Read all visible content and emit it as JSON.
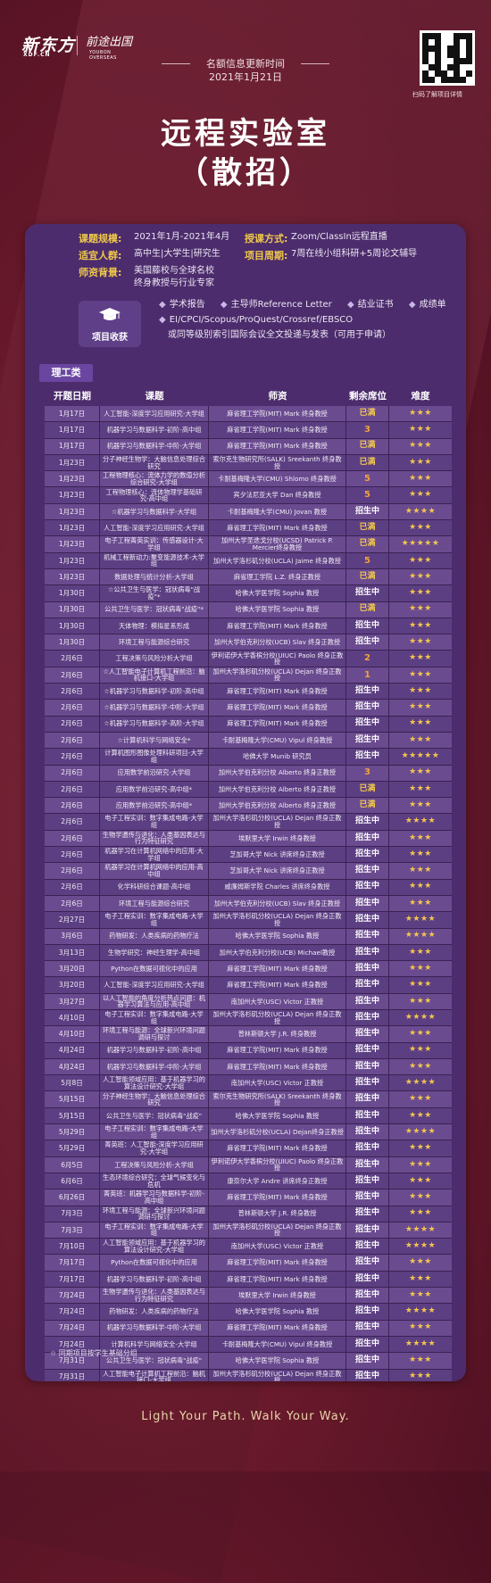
{
  "header": {
    "logo_main": "新东方",
    "logo_main_sub": "XDF.CN",
    "logo_second": "前途出国",
    "logo_second_sub": "YOUBON OVERSEAS",
    "update_label": "名额信息更新时间",
    "update_date": "2021年1月21日",
    "qr_caption": "扫码了解项目详情",
    "title_line1": "远程实验室",
    "title_line2": "（散招）"
  },
  "info": {
    "scale_label": "课题规模:",
    "scale_value": "2021年1月-2021年4月",
    "mode_label": "授课方式:",
    "mode_value": "Zoom/ClassIn远程直播",
    "audience_label": "适宜人群:",
    "audience_value": "高中生|大学生|研究生",
    "cycle_label": "项目周期:",
    "cycle_value": "7周在线小组科研+5周论文辅导",
    "faculty_label": "师资背景:",
    "faculty_line1": "美国藤校与全球名校",
    "faculty_line2": "终身教授与行业专家",
    "harvest_label": "项目收获",
    "harvest_items": [
      "学术报告",
      "主导师Reference Letter",
      "结业证书",
      "成绩单"
    ],
    "harvest_line2": "EI/CPCI/Scopus/ProQuest/Crossref/EBSCO",
    "harvest_line3": "或同等级别索引国际会议全文投递与发表（可用于申请）"
  },
  "section_title": "理工类",
  "table": {
    "headers": [
      "开题日期",
      "课题",
      "师资",
      "剩余席位",
      "难度"
    ],
    "rows": [
      [
        "1月17日",
        "人工智能-深度学习应用研究-大学组",
        "麻省理工学院(MIT) Mark 终身教授",
        "已满",
        "★★★"
      ],
      [
        "1月17日",
        "机器学习与数据科学-初阶-高中组",
        "麻省理工学院(MIT) Mark 终身教授",
        "3",
        "★★★"
      ],
      [
        "1月17日",
        "机器学习与数据科学-中阶-大学组",
        "麻省理工学院(MIT) Mark 终身教授",
        "已满",
        "★★★"
      ],
      [
        "1月23日",
        "分子神经生物学：大脑信息处理综合研究",
        "索尔克生物研究所(SALK) Sreekanth 终身教授",
        "已满",
        "★★★"
      ],
      [
        "1月23日",
        "工程物理核心：流体力学的数值分析综合研究-大学组",
        "卡耐基梅隆大学(CMU) Shlomo 终身教授",
        "5",
        "★★★"
      ],
      [
        "1月23日",
        "工程物理核心：流体物理学基础研究-高中组",
        "宾夕法尼亚大学 Dan 终身教授",
        "5",
        "★★★"
      ],
      [
        "1月23日",
        "☆机器学习与数据科学-大学组",
        "卡耐基梅隆大学(CMU) Jovan 教授",
        "招生中",
        "★★★★"
      ],
      [
        "1月23日",
        "人工智能-深度学习应用研究-大学组",
        "麻省理工学院(MIT) Mark 终身教授",
        "已满",
        "★★★"
      ],
      [
        "1月23日",
        "电子工程菁英实训：传感器设计-大学组",
        "加州大学圣迭戈分校(UCSD) Patrick P. Mercier终身教授",
        "已满",
        "★★★★★"
      ],
      [
        "1月23日",
        "机械工程新动力:聚变能源技术-大学组",
        "加州大学洛杉矶分校(UCLA) Jaime 终身教授",
        "5",
        "★★★"
      ],
      [
        "1月23日",
        "数据处理与统计分析-大学组",
        "麻省理工学院 L.Z. 终身正教授",
        "已满",
        "★★★"
      ],
      [
        "1月30日",
        "☆公共卫生与医学：冠状病毒\"战疫\"*",
        "哈佛大学医学院 Sophia 教授",
        "招生中",
        "★★★"
      ],
      [
        "1月30日",
        "公共卫生与医学：冠状病毒\"战疫\"*",
        "哈佛大学医学院 Sophia 教授",
        "已满",
        "★★★"
      ],
      [
        "1月30日",
        "天体物理：模拟星系形成",
        "麻省理工学院(MIT) Mark 终身教授",
        "招生中",
        "★★★"
      ],
      [
        "1月30日",
        "环境工程与能源综合研究",
        "加州大学伯克利分校(UCB) Slav 终身正教授",
        "招生中",
        "★★★"
      ],
      [
        "2月6日",
        "工程决策与风险分析大学组",
        "伊利诺伊大学香槟分校(UIUC) Paolo 终身正教授",
        "2",
        "★★★"
      ],
      [
        "2月6日",
        "☆人工智能电子计算机工程前沿：脑机接口-大学组",
        "加州大学洛杉矶分校(UCLA) Dejan 终身正教授",
        "1",
        "★★★"
      ],
      [
        "2月6日",
        "☆机器学习与数据科学-初阶-高中组",
        "麻省理工学院(MIT) Mark 终身教授",
        "招生中",
        "★★★"
      ],
      [
        "2月6日",
        "☆机器学习与数据科学-中阶-大学组",
        "麻省理工学院(MIT) Mark 终身教授",
        "招生中",
        "★★★"
      ],
      [
        "2月6日",
        "☆机器学习与数据科学-高阶-大学组",
        "麻省理工学院(MIT) Mark 终身教授",
        "招生中",
        "★★★"
      ],
      [
        "2月6日",
        "☆计算机科学与网络安全*",
        "卡耐基梅隆大学(CMU) Vipul 终身教授",
        "招生中",
        "★★★"
      ],
      [
        "2月6日",
        "计算机图形图像处理科研项目-大学组",
        "哈佛大学 Munib 研究员",
        "招生中",
        "★★★★★"
      ],
      [
        "2月6日",
        "应用数学前沿研究-大学组",
        "加州大学伯克利分校 Alberto 终身正教授",
        "3",
        "★★★"
      ],
      [
        "2月6日",
        "应用数学前沿研究-高中组*",
        "加州大学伯克利分校 Alberto 终身正教授",
        "已满",
        "★★★"
      ],
      [
        "2月6日",
        "应用数学前沿研究-高中组*",
        "加州大学伯克利分校 Alberto 终身正教授",
        "已满",
        "★★★"
      ],
      [
        "2月6日",
        "电子工程实训：数字集成电路-大学组",
        "加州大学洛杉矶分校(UCLA) Dejan 终身正教授",
        "招生中",
        "★★★★"
      ],
      [
        "2月6日",
        "生物学遗传与进化：人类基因表达与行为特征研究",
        "埃默里大学 Irwin 终身教授",
        "招生中",
        "★★★"
      ],
      [
        "2月6日",
        "机器学习在计算机网络中的应用-大学组",
        "芝加哥大学 Nick 讲席终身正教授",
        "招生中",
        "★★★"
      ],
      [
        "2月6日",
        "机器学习在计算机网络中的应用-高中组",
        "芝加哥大学 Nick 讲席终身正教授",
        "招生中",
        "★★★"
      ],
      [
        "2月6日",
        "化学科研综合课题-高中组",
        "威廉姆斯学院 Charles 讲席终身教授",
        "招生中",
        "★★★"
      ],
      [
        "2月6日",
        "环境工程与能源综合研究",
        "加州大学伯克利分校(UCB) Slav 终身正教授",
        "招生中",
        "★★★"
      ],
      [
        "2月27日",
        "电子工程实训：数字集成电路-大学组",
        "加州大学洛杉矶分校(UCLA) Dejan 终身正教授",
        "招生中",
        "★★★★"
      ],
      [
        "3月6日",
        "药物研发：人类疾病的药物疗法",
        "哈佛大学医学院 Sophia 教授",
        "招生中",
        "★★★★"
      ],
      [
        "3月13日",
        "生物学研究：神经生理学-高中组",
        "加州大学伯克利分校(UCB) Michael教授",
        "招生中",
        "★★★"
      ],
      [
        "3月20日",
        "Python在数据可视化中的应用",
        "麻省理工学院(MIT) Mark 终身教授",
        "招生中",
        "★★★"
      ],
      [
        "3月20日",
        "人工智能-深度学习应用研究-大学组",
        "麻省理工学院(MIT) Mark 终身教授",
        "招生中",
        "★★★"
      ],
      [
        "3月27日",
        "以人工智能的角度分析热点问题：机器学习算法与应用-高中组",
        "南加州大学(USC) Victor 正教授",
        "招生中",
        "★★★"
      ],
      [
        "4月10日",
        "电子工程实训：数字集成电路-大学组",
        "加州大学洛杉矶分校(UCLA) Dejan 终身正教授",
        "招生中",
        "★★★★"
      ],
      [
        "4月10日",
        "环境工程与能源：全球新兴环境问题调研与探讨",
        "普林斯顿大学 J.R. 终身教授",
        "招生中",
        "★★★"
      ],
      [
        "4月24日",
        "机器学习与数据科学-初阶-高中组",
        "麻省理工学院(MIT) Mark 终身教授",
        "招生中",
        "★★★"
      ],
      [
        "4月24日",
        "机器学习与数据科学-中阶-大学组",
        "麻省理工学院(MIT) Mark 终身教授",
        "招生中",
        "★★★"
      ],
      [
        "5月8日",
        "人工智能领域应用：基于机器学习的算法设计研究-大学组",
        "南加州大学(USC) Victor 正教授",
        "招生中",
        "★★★★"
      ],
      [
        "5月15日",
        "分子神经生物学：大脑信息处理综合研究",
        "索尔克生物研究所(SALK) Sreekanth 终身教授",
        "招生中",
        "★★★"
      ],
      [
        "5月15日",
        "公共卫生与医学：冠状病毒\"战疫\"",
        "哈佛大学医学院 Sophia 教授",
        "招生中",
        "★★★"
      ],
      [
        "5月29日",
        "电子工程实训：数字集成电路-大学组",
        "加州大学洛杉矶分校(UCLA) Dejan终身正教授",
        "招生中",
        "★★★★"
      ],
      [
        "5月29日",
        "菁英班：人工智能-深度学习应用研究-大学组",
        "麻省理工学院(MIT) Mark 终身教授",
        "招生中",
        "★★★"
      ],
      [
        "6月5日",
        "工程决策与风险分析-大学组",
        "伊利诺伊大学香槟分校(UIUC) Paolo 终身正教授",
        "招生中",
        "★★★"
      ],
      [
        "6月6日",
        "生态环境综合研究：全球气候变化与危机",
        "康奈尔大学 Andre 讲席终身正教授",
        "招生中",
        "★★★"
      ],
      [
        "6月26日",
        "菁英班：机器学习与数据科学-初阶-高中组",
        "麻省理工学院(MIT) Mark 终身教授",
        "招生中",
        "★★★"
      ],
      [
        "7月3日",
        "环境工程与能源：全球新兴环境问题调研与探讨",
        "普林斯顿大学 J.R. 终身教授",
        "招生中",
        "★★★"
      ],
      [
        "7月3日",
        "电子工程实训：数字集成电路-大学组",
        "加州大学洛杉矶分校(UCLA) Dejan 终身正教授",
        "招生中",
        "★★★★"
      ],
      [
        "7月10日",
        "人工智能领域应用：基于机器学习的算法设计研究-大学组",
        "南加州大学(USC) Victor 正教授",
        "招生中",
        "★★★★"
      ],
      [
        "7月17日",
        "Python在数据可视化中的应用",
        "麻省理工学院(MIT) Mark 终身教授",
        "招生中",
        "★★★"
      ],
      [
        "7月17日",
        "机器学习与数据科学-初阶-高中组",
        "麻省理工学院(MIT) Mark 终身教授",
        "招生中",
        "★★★"
      ],
      [
        "7月24日",
        "生物学遗传与进化：人类基因表达与行为特征研究",
        "埃默里大学 Irwin 终身教授",
        "招生中",
        "★★★"
      ],
      [
        "7月24日",
        "药物研发：人类疾病的药物疗法",
        "哈佛大学医学院 Sophia 教授",
        "招生中",
        "★★★★"
      ],
      [
        "7月24日",
        "机器学习与数据科学-中阶-大学组",
        "麻省理工学院(MIT) Mark 终身教授",
        "招生中",
        "★★★"
      ],
      [
        "7月24日",
        "计算机科学与网络安全-大学组",
        "卡耐基梅隆大学(CMU) Vipul 终身教授",
        "招生中",
        "★★★★"
      ],
      [
        "7月31日",
        "公共卫生与医学：冠状病毒\"战疫\"",
        "哈佛大学医学院 Sophia 教授",
        "招生中",
        "★★★"
      ],
      [
        "7月31日",
        "人工智能电子计算机工程前沿：脑机接口-大学组",
        "加州大学洛杉矶分校(UCLA) Dejan 终身正教授",
        "招生中",
        "★★★"
      ]
    ]
  },
  "footnote": "☆ 同期项目按学生基础分组",
  "tagline": "Light Your Path. Walk Your Way.",
  "colors": {
    "gold": "#f2c94c",
    "card": "#4c2c6c",
    "row_alt": "#6a4b8f",
    "row": "#5c3f82",
    "accent": "#f0c94a"
  }
}
